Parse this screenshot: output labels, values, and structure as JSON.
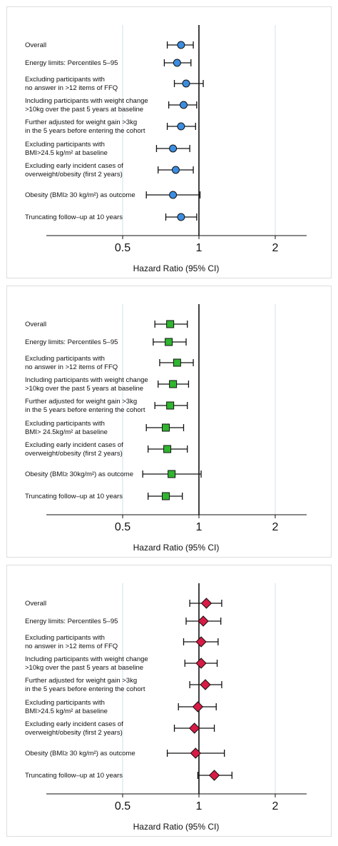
{
  "chart_data": [
    {
      "type": "forest",
      "xlabel": "Hazard Ratio (95% CI)",
      "xscale": "log",
      "xlim": [
        0.25,
        2.66
      ],
      "xticks": [
        0.5,
        1,
        2
      ],
      "grid": true,
      "reference_line": 1,
      "marker": "circle",
      "color": "#3b8de0",
      "categories": [
        [
          "Overall"
        ],
        [
          "Energy limits: Percentiles 5–95"
        ],
        [
          "Excluding participants with",
          "no answer in >12 items of FFQ"
        ],
        [
          "Including participants with weight change",
          ">10kg over the past 5 years at baseline"
        ],
        [
          "Further adjusted for weight gain >3kg",
          "in the 5 years before entering the cohort"
        ],
        [
          "Excluding participants with",
          "BMI>24.5 kg/m² at baseline"
        ],
        [
          "Excluding early incident cases of",
          "overweight/obesity (first 2 years)"
        ],
        [
          "Obesity (BMI≥ 30 kg/m²) as outcome"
        ],
        [
          "Truncating follow–up at 10 years"
        ]
      ],
      "values": [
        0.85,
        0.82,
        0.89,
        0.87,
        0.85,
        0.79,
        0.81,
        0.79,
        0.85
      ],
      "lower": [
        0.75,
        0.73,
        0.8,
        0.76,
        0.75,
        0.68,
        0.69,
        0.62,
        0.74
      ],
      "upper": [
        0.95,
        0.93,
        1.04,
        0.98,
        0.97,
        0.92,
        0.95,
        1.01,
        0.98
      ]
    },
    {
      "type": "forest",
      "xlabel": "Hazard Ratio (95% CI)",
      "xscale": "log",
      "xlim": [
        0.25,
        2.66
      ],
      "xticks": [
        0.5,
        1,
        2
      ],
      "grid": true,
      "reference_line": 1,
      "marker": "square",
      "color": "#2fb52f",
      "categories": [
        [
          "Overall"
        ],
        [
          "Energy limits: Percentiles 5–95"
        ],
        [
          "Excluding participants with",
          "no answer in >12 items of FFQ"
        ],
        [
          "Including participants with weight change",
          ">10kg over the past 5 years at baseline"
        ],
        [
          "Further adjusted for weight gain >3kg",
          "in the 5 years before entering the cohort"
        ],
        [
          "Excluding participants with",
          "BMI> 24.5kg/m² at baseline"
        ],
        [
          "Excluding early incident cases of",
          "overweight/obesity (first 2 years)"
        ],
        [
          "Obesity (BMI≥ 30kg/m²) as outcome"
        ],
        [
          "Truncating follow–up at 10 years"
        ]
      ],
      "values": [
        0.77,
        0.76,
        0.82,
        0.79,
        0.77,
        0.74,
        0.75,
        0.78,
        0.74
      ],
      "lower": [
        0.67,
        0.66,
        0.7,
        0.69,
        0.67,
        0.62,
        0.63,
        0.6,
        0.63
      ],
      "upper": [
        0.9,
        0.89,
        0.95,
        0.91,
        0.9,
        0.87,
        0.9,
        1.02,
        0.86
      ]
    },
    {
      "type": "forest",
      "xlabel": "Hazard Ratio (95% CI)",
      "xscale": "log",
      "xlim": [
        0.25,
        2.66
      ],
      "xticks": [
        0.5,
        1,
        2
      ],
      "grid": true,
      "reference_line": 1,
      "marker": "diamond",
      "color": "#d81b45",
      "categories": [
        [
          "Overall"
        ],
        [
          "Energy limits: Percentiles 5–95"
        ],
        [
          "Excluding participants with",
          "no answer in >12 items of FFQ"
        ],
        [
          "Including participants with weight change",
          ">10kg over the past 5 years at baseline"
        ],
        [
          "Further adjusted for weight gain >3kg",
          "in the 5 years before entering the cohort"
        ],
        [
          "Excluding participants with",
          "BMI>24.5 kg/m² at baseline"
        ],
        [
          "Excluding early incident cases of",
          "overweight/obesity (first 2 years)"
        ],
        [
          "Obesity (BMI≥ 30 kg/m²) as outcome"
        ],
        [
          "Truncating follow–up at 10 years"
        ]
      ],
      "values": [
        1.07,
        1.04,
        1.02,
        1.02,
        1.06,
        0.99,
        0.96,
        0.97,
        1.15
      ],
      "lower": [
        0.92,
        0.89,
        0.87,
        0.88,
        0.92,
        0.83,
        0.8,
        0.75,
        0.99
      ],
      "upper": [
        1.23,
        1.22,
        1.19,
        1.18,
        1.23,
        1.17,
        1.15,
        1.26,
        1.35
      ]
    }
  ]
}
